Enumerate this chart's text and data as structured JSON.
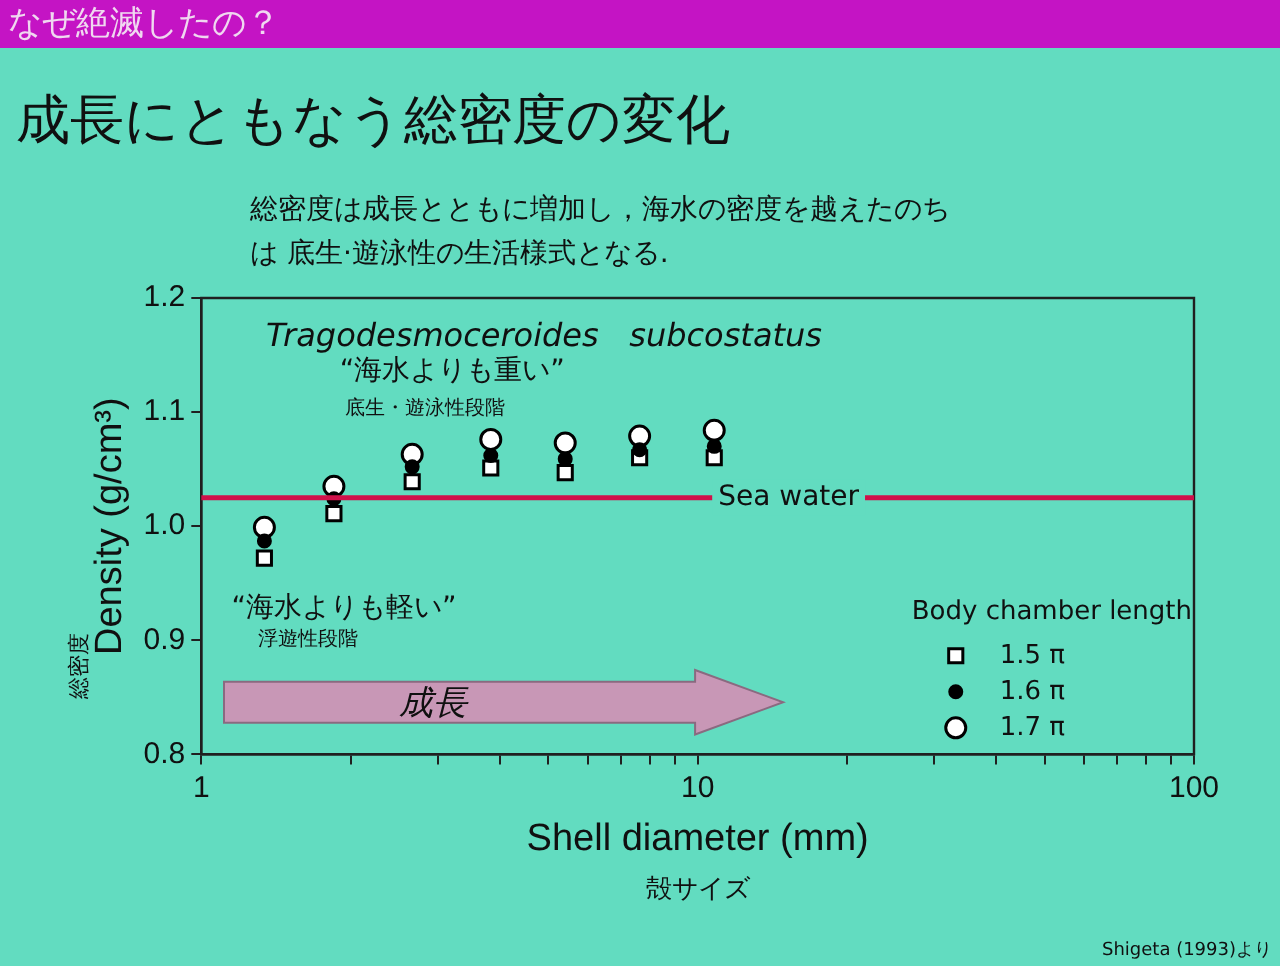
{
  "chart_data": {
    "type": "scatter",
    "title": "成長にともなう総密度の変化",
    "subtitle": "総密度は成長とともに増加し，海水の密度を越えたのちは 底生·遊泳性の生活様式となる.",
    "xlabel": "Shell diameter (mm)",
    "ylabel": "Density (g/cm³)",
    "legend_title": "Body chamber length",
    "annotations": [
      "なぜ絶滅したの？",
      "Tragodesmoceroides   subcostatus",
      "“海水よりも重い”",
      "底生・遊泳性段階",
      "“海水よりも軽い”",
      "浮遊性段階",
      "成長",
      "殻サイズ",
      "総密度",
      "Shigeta (1993)より"
    ],
    "x": [
      1.34,
      1.85,
      2.66,
      3.83,
      5.41,
      7.64,
      10.8
    ],
    "series": [
      {
        "name": "1.5 π",
        "color": "#ffffff",
        "marker": "square",
        "values": [
          0.972,
          1.011,
          1.039,
          1.051,
          1.047,
          1.06,
          1.06
        ]
      },
      {
        "name": "1.6 π",
        "color": "#000000",
        "marker": "circle",
        "values": [
          0.987,
          1.024,
          1.052,
          1.062,
          1.059,
          1.067,
          1.07
        ]
      },
      {
        "name": "1.7 π",
        "color": "#ffffff",
        "marker": "circle",
        "values": [
          0.999,
          1.035,
          1.063,
          1.076,
          1.073,
          1.079,
          1.084
        ]
      }
    ],
    "log": "x",
    "xlim": [
      1,
      100
    ],
    "xticks": [
      1,
      {
        "value": 2,
        "label": null
      },
      {
        "value": 3,
        "label": null
      },
      {
        "value": 4,
        "label": null
      },
      {
        "value": 5,
        "label": null
      },
      {
        "value": 6,
        "label": null
      },
      {
        "value": 7,
        "label": null
      },
      {
        "value": 8,
        "label": null
      },
      {
        "value": 9,
        "label": null
      },
      10,
      {
        "value": 20,
        "label": null
      },
      {
        "value": 30,
        "label": null
      },
      {
        "value": 40,
        "label": null
      },
      {
        "value": 50,
        "label": null
      },
      {
        "value": 60,
        "label": null
      },
      {
        "value": 70,
        "label": null
      },
      {
        "value": 80,
        "label": null
      },
      {
        "value": 90,
        "label": null
      },
      100
    ],
    "ylim": [
      0.8,
      1.2
    ],
    "yticks": [
      0.8,
      0.9,
      {
        "value": 1,
        "label": "1.0"
      },
      1.1,
      1.2
    ],
    "ref_lines": [
      {
        "axis": "y",
        "value": 1.025,
        "label": "Sea water",
        "color": "#d0104a"
      }
    ],
    "grid": false,
    "legend": "bottom right"
  }
}
